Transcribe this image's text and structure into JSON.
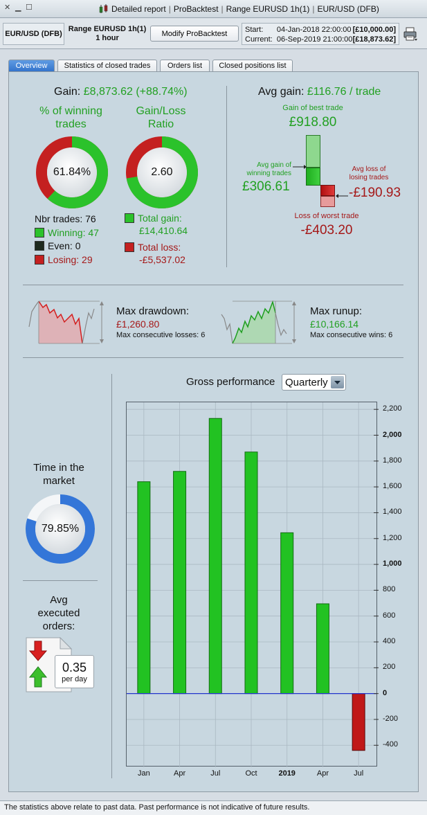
{
  "window": {
    "title_parts": [
      "Detailed report",
      "ProBacktest",
      "Range EURUSD 1h(1)",
      "EUR/USD (DFB)"
    ]
  },
  "header": {
    "instrument": "EUR/USD (DFB)",
    "range_title": "Range EURUSD 1h(1)",
    "range_period": "1 hour",
    "modify_button": "Modify ProBacktest",
    "start_label": "Start:",
    "start_date": "04-Jan-2018 22:00:00",
    "start_amount": "[£10,000.00]",
    "current_label": "Current:",
    "current_date": "06-Sep-2019 21:00:00",
    "current_amount": "[£18,873.62]"
  },
  "tabs": [
    "Overview",
    "Statistics of closed trades",
    "Orders list",
    "Closed positions list"
  ],
  "overview": {
    "gain_label": "Gain:",
    "gain_value": "£8,873.62 (+88.74%)",
    "winning_title_1": "% of winning",
    "winning_title_2": "trades",
    "winning_pct_text": "61.84%",
    "winning_fraction": 0.6184,
    "ratio_title_1": "Gain/Loss",
    "ratio_title_2": "Ratio",
    "ratio_text": "2.60",
    "nbr_trades": "Nbr trades: 76",
    "winning": "Winning: 47",
    "even": "Even: 0",
    "losing": "Losing: 29",
    "total_gain_label": "Total gain:",
    "total_gain_value": "£14,410.64",
    "total_loss_label": "Total loss:",
    "total_loss_value": "-£5,537.02",
    "avg_gain_label": "Avg gain:",
    "avg_gain_value": "£116.76 / trade",
    "best_trade_label": "Gain of best trade",
    "best_trade_value": "£918.80",
    "avg_win_label_1": "Avg gain of",
    "avg_win_label_2": "winning trades",
    "avg_win_value": "£306.61",
    "avg_loss_label_1": "Avg loss of",
    "avg_loss_label_2": "losing trades",
    "avg_loss_value": "-£190.93",
    "worst_trade_label": "Loss of worst trade",
    "worst_trade_value": "-£403.20",
    "max_drawdown_label": "Max drawdown:",
    "max_drawdown_value": "£1,260.80",
    "max_consec_losses": "Max consecutive losses: 6",
    "max_runup_label": "Max runup:",
    "max_runup_value": "£10,166.14",
    "max_consec_wins": "Max consecutive wins: 6",
    "time_market_1": "Time in the",
    "time_market_2": "market",
    "time_market_value": "79.85%",
    "time_market_fraction": 0.7985,
    "avg_exec_1": "Avg",
    "avg_exec_2": "executed",
    "avg_exec_3": "orders:",
    "avg_exec_value": "0.35",
    "avg_exec_unit": "per day"
  },
  "gross": {
    "title": "Gross performance",
    "period_select": "Quarterly"
  },
  "colors": {
    "green": "#22a022",
    "red": "#a51818",
    "tab_active": "#2e6fc9"
  },
  "chart_data": {
    "type": "bar",
    "categories": [
      "Jan",
      "Apr",
      "Jul",
      "Oct",
      "2019",
      "Apr",
      "Jul"
    ],
    "values": [
      1640,
      1720,
      2130,
      1870,
      1245,
      695,
      -440
    ],
    "y_ticks": [
      "2,200",
      "2,000",
      "1,800",
      "1,600",
      "1,400",
      "1,200",
      "1,000",
      "800",
      "600",
      "400",
      "200",
      "0",
      "-200",
      "-400"
    ],
    "y_tick_values": [
      2200,
      2000,
      1800,
      1600,
      1400,
      1200,
      1000,
      800,
      600,
      400,
      200,
      0,
      -200,
      -400
    ],
    "ylim": [
      -570,
      2260
    ],
    "grid": true,
    "positive_color": "#22c222",
    "negative_color": "#c01818"
  }
}
